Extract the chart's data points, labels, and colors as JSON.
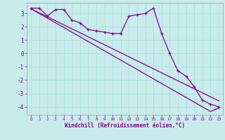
{
  "xlabel": "Windchill (Refroidissement éolien,°C)",
  "bg_color": "#c8ecec",
  "line_color": "#880088",
  "grid_color": "#aadddd",
  "x_data": [
    0,
    1,
    2,
    3,
    4,
    5,
    6,
    7,
    8,
    9,
    10,
    11,
    12,
    13,
    14,
    15,
    16,
    17,
    18,
    19,
    20,
    21,
    22,
    23
  ],
  "series1": [
    3.4,
    3.4,
    2.8,
    3.3,
    3.3,
    2.5,
    2.3,
    1.8,
    1.7,
    1.6,
    1.5,
    1.5,
    2.8,
    2.9,
    3.0,
    3.4,
    1.5,
    0.0,
    -1.3,
    -1.7,
    -2.5,
    -3.5,
    -3.8,
    -4.0
  ],
  "line2": [
    3.35,
    3.05,
    2.75,
    2.45,
    2.15,
    1.85,
    1.55,
    1.25,
    0.95,
    0.65,
    0.35,
    0.05,
    -0.25,
    -0.55,
    -0.85,
    -1.15,
    -1.45,
    -1.75,
    -2.05,
    -2.35,
    -2.65,
    -2.95,
    -3.25,
    -3.55
  ],
  "line3": [
    3.35,
    3.0,
    2.65,
    2.3,
    1.95,
    1.6,
    1.25,
    0.9,
    0.55,
    0.2,
    -0.15,
    -0.5,
    -0.85,
    -1.2,
    -1.55,
    -1.9,
    -2.25,
    -2.6,
    -2.95,
    -3.3,
    -3.65,
    -4.0,
    -4.35,
    -4.1
  ],
  "ylim": [
    -4.6,
    3.8
  ],
  "xlim": [
    -0.5,
    23.5
  ],
  "yticks": [
    -4,
    -3,
    -2,
    -1,
    0,
    1,
    2,
    3
  ],
  "xticks": [
    0,
    1,
    2,
    3,
    4,
    5,
    6,
    7,
    8,
    9,
    10,
    11,
    12,
    13,
    14,
    15,
    16,
    17,
    18,
    19,
    20,
    21,
    22,
    23
  ]
}
